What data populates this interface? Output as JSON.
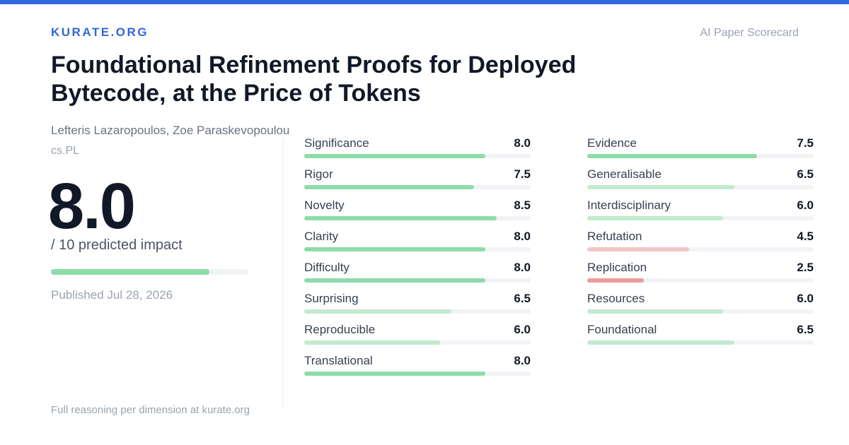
{
  "header": {
    "brand": "KURATE.ORG",
    "tag": "AI Paper Scorecard"
  },
  "paper": {
    "title": "Foundational Refinement Proofs for Deployed Bytecode, at the Price of Tokens",
    "authors": "Lefteris Lazaropoulos, Zoe Paraskevopoulou",
    "category": "cs.PL",
    "published": "Published Jul 28, 2026"
  },
  "score": {
    "value": 8,
    "label": "8.0",
    "max": 10,
    "caption": "/ 10 predicted impact",
    "color": "#8ddca9"
  },
  "columns": [
    [
      {
        "name": "Significance",
        "value": 8,
        "label": "8.0",
        "color": "#8ddca9"
      },
      {
        "name": "Rigor",
        "value": 7.5,
        "label": "7.5",
        "color": "#8ddca9"
      },
      {
        "name": "Novelty",
        "value": 8.5,
        "label": "8.5",
        "color": "#8ddca9"
      },
      {
        "name": "Clarity",
        "value": 8,
        "label": "8.0",
        "color": "#8ddca9"
      },
      {
        "name": "Difficulty",
        "value": 8,
        "label": "8.0",
        "color": "#8ddca9"
      },
      {
        "name": "Surprising",
        "value": 6.5,
        "label": "6.5",
        "color": "#c2eacf"
      },
      {
        "name": "Reproducible",
        "value": 6,
        "label": "6.0",
        "color": "#c2eacf"
      },
      {
        "name": "Translational",
        "value": 8,
        "label": "8.0",
        "color": "#8ddca9"
      }
    ],
    [
      {
        "name": "Evidence",
        "value": 7.5,
        "label": "7.5",
        "color": "#8ddca9"
      },
      {
        "name": "Generalisable",
        "value": 6.5,
        "label": "6.5",
        "color": "#c2eacf"
      },
      {
        "name": "Interdisciplinary",
        "value": 6,
        "label": "6.0",
        "color": "#c2eacf"
      },
      {
        "name": "Refutation",
        "value": 4.5,
        "label": "4.5",
        "color": "#f2c6c8"
      },
      {
        "name": "Replication",
        "value": 2.5,
        "label": "2.5",
        "color": "#ee9a9b"
      },
      {
        "name": "Resources",
        "value": 6,
        "label": "6.0",
        "color": "#c2eacf"
      },
      {
        "name": "Foundational",
        "value": 6.5,
        "label": "6.5",
        "color": "#c2eacf"
      }
    ]
  ],
  "footer": "Full reasoning per dimension at kurate.org"
}
